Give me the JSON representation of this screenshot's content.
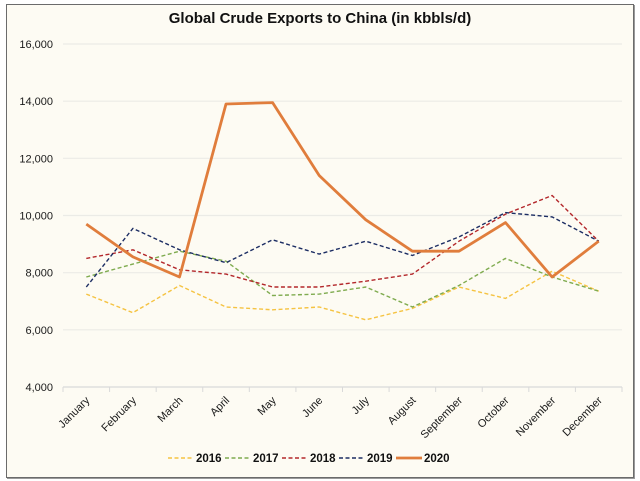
{
  "chart_data": {
    "type": "line",
    "title": "Global Crude Exports to China (in kbbls/d)",
    "xlabel": "",
    "ylabel": "",
    "ylim": [
      4000,
      16000
    ],
    "yticks": [
      4000,
      6000,
      8000,
      10000,
      12000,
      14000,
      16000
    ],
    "ytick_labels": [
      "4,000",
      "6,000",
      "8,000",
      "10,000",
      "12,000",
      "14,000",
      "16,000"
    ],
    "grid": true,
    "legend_position": "bottom",
    "categories": [
      "January",
      "February",
      "March",
      "April",
      "May",
      "June",
      "July",
      "August",
      "September",
      "October",
      "November",
      "December"
    ],
    "series": [
      {
        "name": "2016",
        "color": "#f5c342",
        "style": "dashed",
        "values": [
          7250,
          6600,
          7550,
          6800,
          6700,
          6800,
          6350,
          6750,
          7500,
          7100,
          8050,
          7350
        ]
      },
      {
        "name": "2017",
        "color": "#7fab4f",
        "style": "dashed",
        "values": [
          7850,
          8300,
          8750,
          8400,
          7200,
          7250,
          7500,
          6800,
          7550,
          8500,
          7850,
          7350
        ]
      },
      {
        "name": "2018",
        "color": "#b3272b",
        "style": "dashed",
        "values": [
          8500,
          8800,
          8100,
          7950,
          7500,
          7500,
          7700,
          7950,
          9100,
          10050,
          10700,
          9100
        ]
      },
      {
        "name": "2019",
        "color": "#1c2d63",
        "style": "dashed",
        "values": [
          7500,
          9550,
          8800,
          8350,
          9150,
          8650,
          9100,
          8600,
          9250,
          10100,
          9950,
          9100
        ]
      },
      {
        "name": "2020",
        "color": "#e07d3c",
        "style": "solid",
        "values": [
          9700,
          8550,
          7850,
          13900,
          13950,
          11400,
          9850,
          8750,
          8750,
          9750,
          7850,
          9100
        ]
      }
    ]
  }
}
